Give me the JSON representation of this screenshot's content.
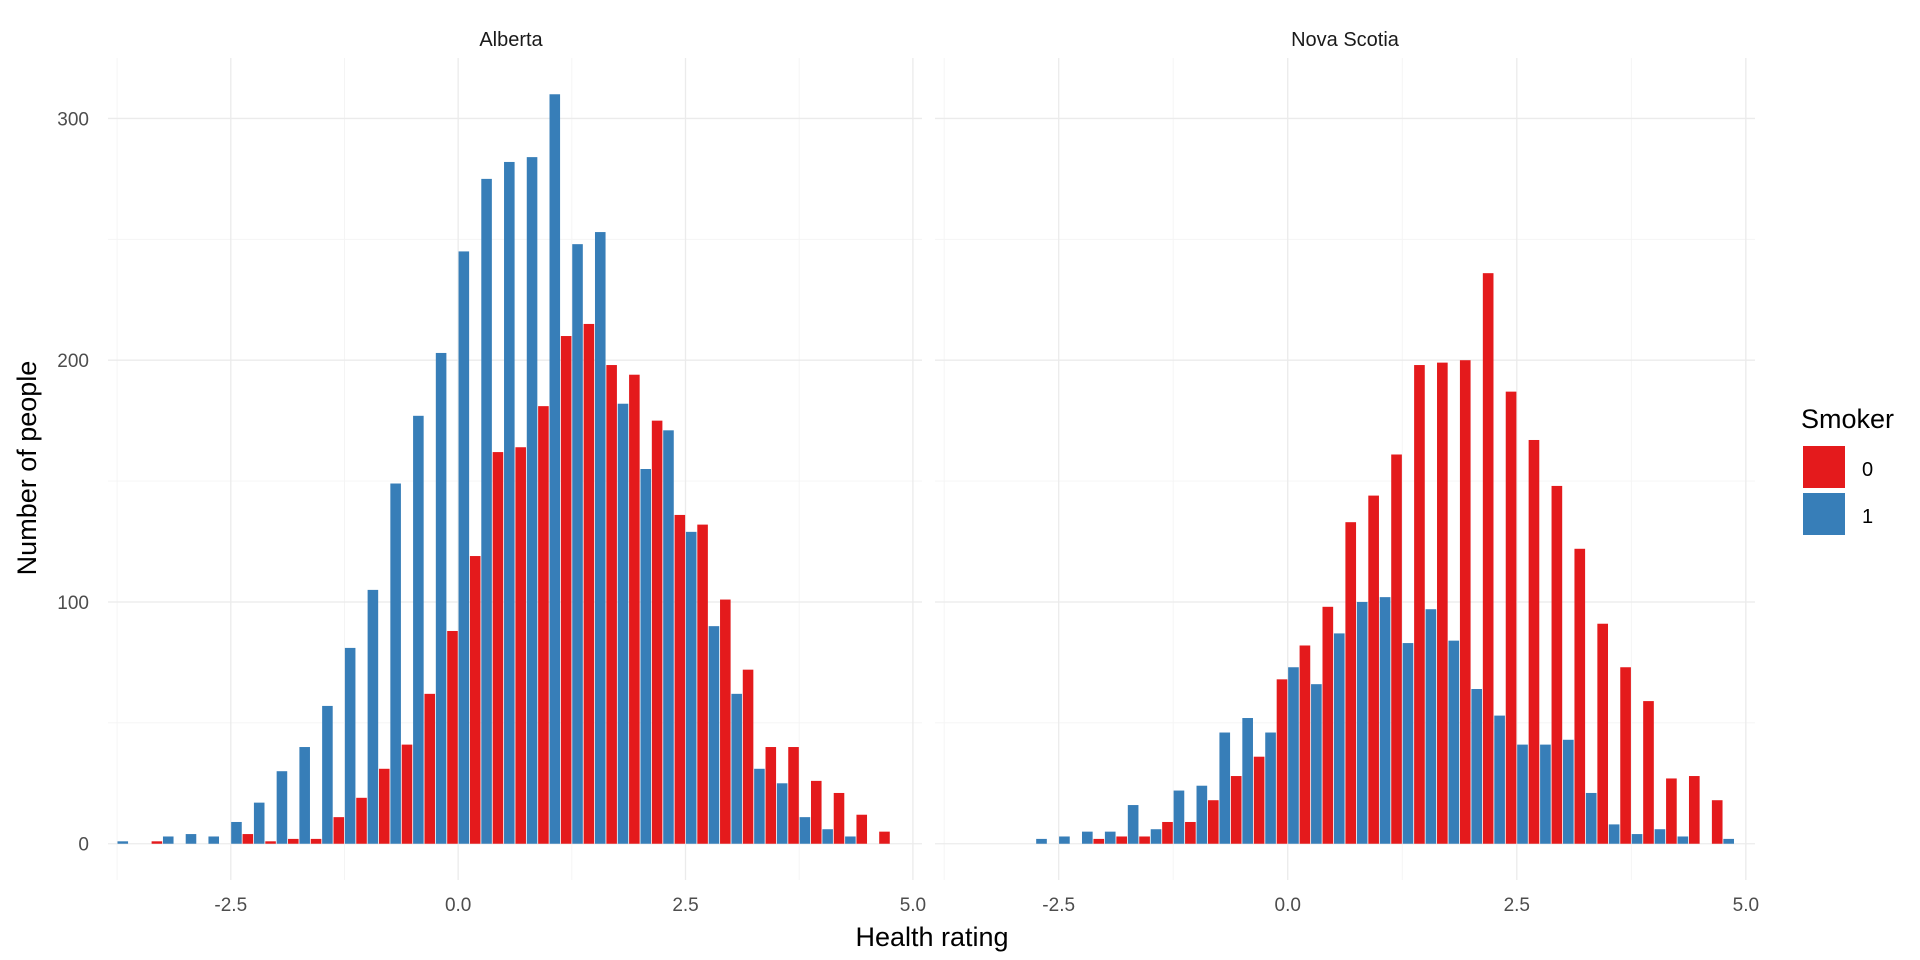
{
  "chart_data": {
    "type": "bar",
    "subtype": "faceted histogram (dodged)",
    "xlabel": "Health rating",
    "ylabel": "Number of people",
    "xlim": [
      -3.85,
      5.1
    ],
    "ylim": [
      -15,
      325
    ],
    "x_ticks": [
      -2.5,
      0.0,
      2.5,
      5.0
    ],
    "x_tick_labels": [
      "-2.5",
      "0.0",
      "2.5",
      "5.0"
    ],
    "y_ticks": [
      0,
      100,
      200,
      300
    ],
    "y_tick_labels": [
      "0",
      "100",
      "200",
      "300"
    ],
    "bin_width": 0.25,
    "bin_centers": [
      -3.75,
      -3.5,
      -3.25,
      -3.0,
      -2.75,
      -2.5,
      -2.25,
      -2.0,
      -1.75,
      -1.5,
      -1.25,
      -1.0,
      -0.75,
      -0.5,
      -0.25,
      0.0,
      0.25,
      0.5,
      0.75,
      1.0,
      1.25,
      1.5,
      1.75,
      2.0,
      2.25,
      2.5,
      2.75,
      3.0,
      3.25,
      3.5,
      3.75,
      4.0,
      4.25,
      4.5,
      4.75
    ],
    "grid": true,
    "legend": {
      "title": "Smoker",
      "position": "right",
      "entries": [
        {
          "label": "0",
          "color": "#E41A1C"
        },
        {
          "label": "1",
          "color": "#377EB8"
        }
      ]
    },
    "panels": [
      {
        "title": "Alberta",
        "series": [
          {
            "name": "0",
            "color": "#E41A1C",
            "values": [
              0,
              0,
              1,
              0,
              0,
              0,
              4,
              1,
              2,
              2,
              11,
              19,
              31,
              41,
              62,
              88,
              119,
              162,
              164,
              181,
              210,
              215,
              198,
              194,
              175,
              136,
              132,
              101,
              72,
              40,
              40,
              26,
              21,
              12,
              5
            ]
          },
          {
            "name": "1",
            "color": "#377EB8",
            "values": [
              1,
              0,
              3,
              4,
              3,
              9,
              17,
              30,
              40,
              57,
              81,
              105,
              149,
              177,
              203,
              245,
              275,
              282,
              284,
              310,
              248,
              253,
              182,
              155,
              171,
              129,
              90,
              62,
              31,
              25,
              11,
              6,
              3,
              0,
              0
            ]
          }
        ]
      },
      {
        "title": "Nova Scotia",
        "series": [
          {
            "name": "0",
            "color": "#E41A1C",
            "values": [
              0,
              0,
              0,
              0,
              0,
              0,
              0,
              2,
              3,
              3,
              9,
              9,
              18,
              28,
              36,
              68,
              82,
              98,
              133,
              144,
              161,
              198,
              199,
              200,
              236,
              187,
              167,
              148,
              122,
              91,
              73,
              59,
              27,
              28,
              18
            ]
          },
          {
            "name": "1",
            "color": "#377EB8",
            "values": [
              0,
              0,
              0,
              0,
              2,
              3,
              5,
              5,
              16,
              6,
              22,
              24,
              46,
              52,
              46,
              73,
              66,
              87,
              100,
              102,
              83,
              97,
              84,
              64,
              53,
              41,
              41,
              43,
              21,
              8,
              4,
              6,
              3,
              0,
              2
            ]
          }
        ]
      }
    ]
  }
}
